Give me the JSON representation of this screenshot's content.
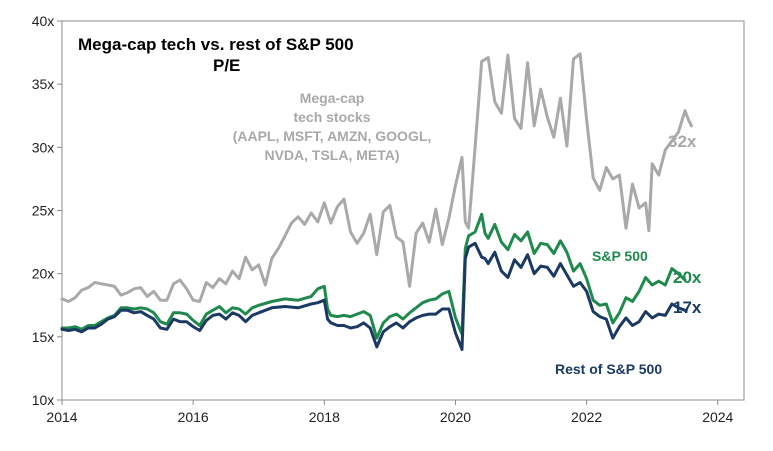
{
  "chart_data": {
    "type": "line",
    "title": "Mega-cap tech vs. rest of S&P 500",
    "subtitle": "P/E",
    "xlabel": "",
    "ylabel": "",
    "xlim": [
      2014,
      2024.4
    ],
    "ylim": [
      10,
      40
    ],
    "x_ticks": [
      2014,
      2016,
      2018,
      2020,
      2022,
      2024
    ],
    "x_tick_labels": [
      "2014",
      "2016",
      "2018",
      "2020",
      "2022",
      "2024"
    ],
    "y_ticks": [
      10,
      15,
      20,
      25,
      30,
      35,
      40
    ],
    "y_tick_labels": [
      "10x",
      "15x",
      "20x",
      "25x",
      "30x",
      "35x",
      "40x"
    ],
    "grid": false,
    "series": [
      {
        "name": "Mega-cap tech stocks",
        "annotation": [
          "Mega-cap",
          "tech stocks",
          "(AAPL, MSFT, AMZN, GOOGL,",
          "NVDA, TSLA, META)"
        ],
        "end_label": "32x",
        "color": "#a9a9a9",
        "points": [
          [
            2014.0,
            18.0
          ],
          [
            2014.1,
            17.8
          ],
          [
            2014.2,
            18.1
          ],
          [
            2014.3,
            18.7
          ],
          [
            2014.4,
            18.9
          ],
          [
            2014.5,
            19.3
          ],
          [
            2014.6,
            19.2
          ],
          [
            2014.7,
            19.1
          ],
          [
            2014.8,
            19.0
          ],
          [
            2014.9,
            18.3
          ],
          [
            2015.0,
            18.5
          ],
          [
            2015.1,
            18.8
          ],
          [
            2015.2,
            18.9
          ],
          [
            2015.3,
            18.2
          ],
          [
            2015.4,
            18.6
          ],
          [
            2015.5,
            17.9
          ],
          [
            2015.6,
            17.9
          ],
          [
            2015.7,
            19.2
          ],
          [
            2015.8,
            19.5
          ],
          [
            2015.9,
            18.8
          ],
          [
            2016.0,
            17.9
          ],
          [
            2016.1,
            17.8
          ],
          [
            2016.2,
            19.3
          ],
          [
            2016.3,
            18.9
          ],
          [
            2016.4,
            19.6
          ],
          [
            2016.5,
            19.2
          ],
          [
            2016.6,
            20.2
          ],
          [
            2016.7,
            19.6
          ],
          [
            2016.8,
            21.3
          ],
          [
            2016.9,
            20.3
          ],
          [
            2017.0,
            20.7
          ],
          [
            2017.1,
            19.1
          ],
          [
            2017.2,
            21.2
          ],
          [
            2017.3,
            22.0
          ],
          [
            2017.4,
            23.0
          ],
          [
            2017.5,
            24.0
          ],
          [
            2017.6,
            24.5
          ],
          [
            2017.7,
            23.9
          ],
          [
            2017.8,
            24.8
          ],
          [
            2017.9,
            24.1
          ],
          [
            2018.0,
            25.6
          ],
          [
            2018.1,
            24.0
          ],
          [
            2018.2,
            25.3
          ],
          [
            2018.3,
            25.9
          ],
          [
            2018.4,
            23.3
          ],
          [
            2018.5,
            22.4
          ],
          [
            2018.6,
            23.2
          ],
          [
            2018.7,
            24.7
          ],
          [
            2018.8,
            21.5
          ],
          [
            2018.9,
            24.9
          ],
          [
            2019.0,
            25.4
          ],
          [
            2019.1,
            22.9
          ],
          [
            2019.2,
            22.5
          ],
          [
            2019.3,
            19.0
          ],
          [
            2019.4,
            23.2
          ],
          [
            2019.5,
            24.0
          ],
          [
            2019.6,
            22.5
          ],
          [
            2019.7,
            25.1
          ],
          [
            2019.8,
            22.3
          ],
          [
            2019.9,
            24.4
          ],
          [
            2020.0,
            27.0
          ],
          [
            2020.1,
            29.2
          ],
          [
            2020.15,
            24.1
          ],
          [
            2020.2,
            23.6
          ],
          [
            2020.3,
            30.0
          ],
          [
            2020.4,
            36.8
          ],
          [
            2020.5,
            37.1
          ],
          [
            2020.6,
            33.6
          ],
          [
            2020.7,
            32.7
          ],
          [
            2020.8,
            37.3
          ],
          [
            2020.9,
            32.3
          ],
          [
            2021.0,
            31.5
          ],
          [
            2021.1,
            36.7
          ],
          [
            2021.2,
            31.7
          ],
          [
            2021.3,
            34.6
          ],
          [
            2021.4,
            32.4
          ],
          [
            2021.5,
            30.8
          ],
          [
            2021.6,
            33.9
          ],
          [
            2021.7,
            30.1
          ],
          [
            2021.8,
            37.0
          ],
          [
            2021.9,
            37.4
          ],
          [
            2022.0,
            32.2
          ],
          [
            2022.1,
            27.6
          ],
          [
            2022.2,
            26.6
          ],
          [
            2022.3,
            28.4
          ],
          [
            2022.4,
            27.5
          ],
          [
            2022.5,
            27.8
          ],
          [
            2022.6,
            23.6
          ],
          [
            2022.7,
            27.1
          ],
          [
            2022.8,
            25.2
          ],
          [
            2022.9,
            25.6
          ],
          [
            2022.95,
            23.4
          ],
          [
            2023.0,
            28.7
          ],
          [
            2023.1,
            27.8
          ],
          [
            2023.2,
            29.8
          ],
          [
            2023.3,
            30.5
          ],
          [
            2023.4,
            31.2
          ],
          [
            2023.5,
            32.9
          ],
          [
            2023.55,
            32.2
          ],
          [
            2023.6,
            31.7
          ]
        ]
      },
      {
        "name": "S&P 500",
        "end_label": "20x",
        "color": "#1f8a4c",
        "points": [
          [
            2014.0,
            15.7
          ],
          [
            2014.1,
            15.7
          ],
          [
            2014.2,
            15.8
          ],
          [
            2014.3,
            15.6
          ],
          [
            2014.4,
            15.9
          ],
          [
            2014.5,
            15.9
          ],
          [
            2014.6,
            16.2
          ],
          [
            2014.7,
            16.5
          ],
          [
            2014.8,
            16.7
          ],
          [
            2014.9,
            17.3
          ],
          [
            2015.0,
            17.3
          ],
          [
            2015.1,
            17.2
          ],
          [
            2015.2,
            17.3
          ],
          [
            2015.3,
            17.2
          ],
          [
            2015.4,
            16.9
          ],
          [
            2015.5,
            16.2
          ],
          [
            2015.6,
            16.0
          ],
          [
            2015.7,
            16.9
          ],
          [
            2015.8,
            16.9
          ],
          [
            2015.9,
            16.8
          ],
          [
            2016.0,
            16.3
          ],
          [
            2016.1,
            15.9
          ],
          [
            2016.2,
            16.8
          ],
          [
            2016.3,
            17.1
          ],
          [
            2016.4,
            17.4
          ],
          [
            2016.5,
            16.9
          ],
          [
            2016.6,
            17.3
          ],
          [
            2016.7,
            17.2
          ],
          [
            2016.8,
            16.8
          ],
          [
            2016.9,
            17.3
          ],
          [
            2017.0,
            17.5
          ],
          [
            2017.2,
            17.8
          ],
          [
            2017.4,
            18.0
          ],
          [
            2017.6,
            17.9
          ],
          [
            2017.8,
            18.2
          ],
          [
            2017.9,
            18.8
          ],
          [
            2018.0,
            19.0
          ],
          [
            2018.05,
            17.2
          ],
          [
            2018.1,
            16.7
          ],
          [
            2018.2,
            16.6
          ],
          [
            2018.3,
            16.7
          ],
          [
            2018.4,
            16.6
          ],
          [
            2018.5,
            16.8
          ],
          [
            2018.6,
            17.0
          ],
          [
            2018.7,
            16.7
          ],
          [
            2018.8,
            14.9
          ],
          [
            2018.9,
            16.1
          ],
          [
            2019.0,
            16.6
          ],
          [
            2019.1,
            16.8
          ],
          [
            2019.2,
            16.4
          ],
          [
            2019.3,
            16.9
          ],
          [
            2019.4,
            17.3
          ],
          [
            2019.5,
            17.7
          ],
          [
            2019.6,
            17.9
          ],
          [
            2019.7,
            18.0
          ],
          [
            2019.8,
            18.4
          ],
          [
            2019.9,
            18.6
          ],
          [
            2020.0,
            16.5
          ],
          [
            2020.1,
            15.2
          ],
          [
            2020.15,
            22.0
          ],
          [
            2020.2,
            23.0
          ],
          [
            2020.3,
            23.3
          ],
          [
            2020.4,
            24.7
          ],
          [
            2020.45,
            23.2
          ],
          [
            2020.5,
            22.8
          ],
          [
            2020.6,
            23.9
          ],
          [
            2020.7,
            22.5
          ],
          [
            2020.8,
            21.9
          ],
          [
            2020.9,
            23.1
          ],
          [
            2021.0,
            22.6
          ],
          [
            2021.1,
            23.3
          ],
          [
            2021.2,
            21.6
          ],
          [
            2021.3,
            22.4
          ],
          [
            2021.4,
            22.3
          ],
          [
            2021.5,
            21.6
          ],
          [
            2021.6,
            22.6
          ],
          [
            2021.7,
            21.7
          ],
          [
            2021.8,
            20.2
          ],
          [
            2021.9,
            20.8
          ],
          [
            2022.0,
            19.6
          ],
          [
            2022.1,
            17.9
          ],
          [
            2022.2,
            17.5
          ],
          [
            2022.3,
            17.6
          ],
          [
            2022.4,
            16.1
          ],
          [
            2022.5,
            16.9
          ],
          [
            2022.6,
            18.1
          ],
          [
            2022.7,
            17.8
          ],
          [
            2022.8,
            18.6
          ],
          [
            2022.9,
            19.7
          ],
          [
            2023.0,
            19.1
          ],
          [
            2023.1,
            19.4
          ],
          [
            2023.2,
            19.1
          ],
          [
            2023.3,
            20.4
          ],
          [
            2023.4,
            20.0
          ],
          [
            2023.5,
            19.5
          ]
        ]
      },
      {
        "name": "Rest of S&P 500",
        "end_label": "17x",
        "color": "#1a3a63",
        "points": [
          [
            2014.0,
            15.6
          ],
          [
            2014.1,
            15.5
          ],
          [
            2014.2,
            15.6
          ],
          [
            2014.3,
            15.4
          ],
          [
            2014.4,
            15.7
          ],
          [
            2014.5,
            15.7
          ],
          [
            2014.6,
            16.0
          ],
          [
            2014.7,
            16.4
          ],
          [
            2014.8,
            16.6
          ],
          [
            2014.9,
            17.1
          ],
          [
            2015.0,
            17.1
          ],
          [
            2015.1,
            16.9
          ],
          [
            2015.2,
            17.0
          ],
          [
            2015.3,
            16.7
          ],
          [
            2015.4,
            16.4
          ],
          [
            2015.5,
            15.7
          ],
          [
            2015.6,
            15.6
          ],
          [
            2015.7,
            16.4
          ],
          [
            2015.8,
            16.2
          ],
          [
            2015.9,
            16.2
          ],
          [
            2016.0,
            15.8
          ],
          [
            2016.1,
            15.5
          ],
          [
            2016.2,
            16.3
          ],
          [
            2016.3,
            16.7
          ],
          [
            2016.4,
            16.8
          ],
          [
            2016.5,
            16.4
          ],
          [
            2016.6,
            16.9
          ],
          [
            2016.7,
            16.7
          ],
          [
            2016.8,
            16.2
          ],
          [
            2016.9,
            16.7
          ],
          [
            2017.0,
            16.9
          ],
          [
            2017.2,
            17.3
          ],
          [
            2017.4,
            17.4
          ],
          [
            2017.6,
            17.3
          ],
          [
            2017.8,
            17.6
          ],
          [
            2017.9,
            17.7
          ],
          [
            2018.0,
            17.9
          ],
          [
            2018.05,
            16.4
          ],
          [
            2018.1,
            16.1
          ],
          [
            2018.2,
            15.9
          ],
          [
            2018.3,
            15.9
          ],
          [
            2018.4,
            15.7
          ],
          [
            2018.5,
            15.8
          ],
          [
            2018.6,
            16.1
          ],
          [
            2018.7,
            15.7
          ],
          [
            2018.8,
            14.2
          ],
          [
            2018.9,
            15.4
          ],
          [
            2019.0,
            15.8
          ],
          [
            2019.1,
            16.1
          ],
          [
            2019.2,
            15.7
          ],
          [
            2019.3,
            16.2
          ],
          [
            2019.4,
            16.5
          ],
          [
            2019.5,
            16.7
          ],
          [
            2019.6,
            16.8
          ],
          [
            2019.7,
            16.8
          ],
          [
            2019.8,
            17.2
          ],
          [
            2019.9,
            17.2
          ],
          [
            2020.0,
            15.3
          ],
          [
            2020.1,
            14.0
          ],
          [
            2020.15,
            21.2
          ],
          [
            2020.2,
            22.1
          ],
          [
            2020.3,
            22.4
          ],
          [
            2020.4,
            21.3
          ],
          [
            2020.45,
            21.2
          ],
          [
            2020.5,
            20.8
          ],
          [
            2020.6,
            21.7
          ],
          [
            2020.7,
            20.2
          ],
          [
            2020.8,
            19.7
          ],
          [
            2020.9,
            21.1
          ],
          [
            2021.0,
            20.5
          ],
          [
            2021.1,
            21.5
          ],
          [
            2021.2,
            20.0
          ],
          [
            2021.3,
            20.6
          ],
          [
            2021.4,
            20.5
          ],
          [
            2021.5,
            19.8
          ],
          [
            2021.6,
            20.8
          ],
          [
            2021.7,
            19.9
          ],
          [
            2021.8,
            19.0
          ],
          [
            2021.9,
            19.3
          ],
          [
            2022.0,
            18.6
          ],
          [
            2022.1,
            17.0
          ],
          [
            2022.2,
            16.6
          ],
          [
            2022.3,
            16.4
          ],
          [
            2022.4,
            14.9
          ],
          [
            2022.5,
            15.8
          ],
          [
            2022.6,
            16.5
          ],
          [
            2022.7,
            15.9
          ],
          [
            2022.8,
            16.2
          ],
          [
            2022.9,
            17.0
          ],
          [
            2023.0,
            16.5
          ],
          [
            2023.1,
            16.8
          ],
          [
            2023.2,
            16.7
          ],
          [
            2023.3,
            17.6
          ],
          [
            2023.4,
            17.3
          ],
          [
            2023.5,
            17.1
          ]
        ]
      }
    ]
  }
}
